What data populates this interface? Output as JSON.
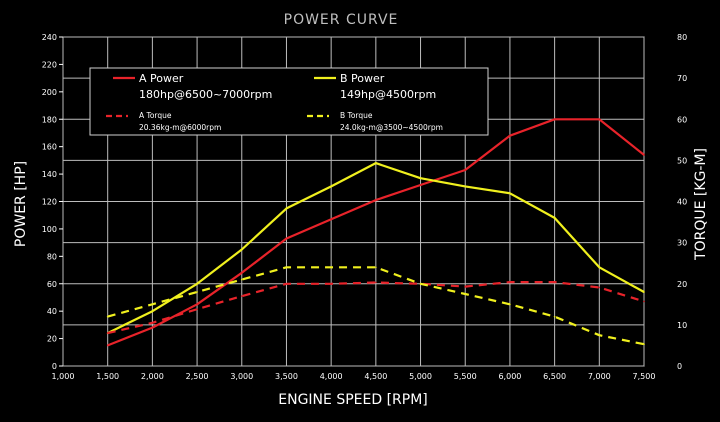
{
  "chart_data": {
    "type": "line",
    "title": "POWER CURVE",
    "xlabel": "ENGINE SPEED [RPM]",
    "ylabel_left": "POWER [HP]",
    "ylabel_right": "TORQUE [KG-M]",
    "x_ticks": [
      "1,000",
      "1,500",
      "2,000",
      "2,500",
      "3,000",
      "3,500",
      "4,000",
      "4,500",
      "5,000",
      "5,500",
      "6,000",
      "6,500",
      "7,000",
      "7,500"
    ],
    "y_left_ticks": [
      "0",
      "20",
      "40",
      "60",
      "80",
      "100",
      "120",
      "140",
      "160",
      "180",
      "200",
      "220",
      "240"
    ],
    "y_right_ticks": [
      "0",
      "10",
      "20",
      "30",
      "40",
      "50",
      "60",
      "70",
      "80"
    ],
    "xlim": [
      1000,
      7500
    ],
    "ylim_left": [
      0,
      240
    ],
    "ylim_right": [
      0,
      80
    ],
    "grid": true,
    "legend_position": "top-left",
    "series": [
      {
        "name": "A Power",
        "legend_detail": "180hp@6500~7000rpm",
        "axis": "left",
        "color": "#e8232a",
        "dashed": false,
        "x": [
          1500,
          2000,
          2500,
          3000,
          3500,
          4000,
          4500,
          5000,
          5500,
          6000,
          6500,
          7000,
          7500
        ],
        "y": [
          15,
          28,
          45,
          68,
          93,
          107,
          121,
          132,
          143,
          168,
          180,
          180,
          154
        ]
      },
      {
        "name": "B Power",
        "legend_detail": "149hp@4500rpm",
        "axis": "left",
        "color": "#f0f01e",
        "dashed": false,
        "x": [
          1500,
          2000,
          2500,
          3000,
          3500,
          4000,
          4500,
          5000,
          5500,
          6000,
          6500,
          7000,
          7500
        ],
        "y": [
          24,
          40,
          60,
          85,
          115,
          131,
          148,
          137,
          131,
          126,
          108,
          72,
          54
        ]
      },
      {
        "name": "A Torque",
        "legend_detail": "20.36kg-m@6000rpm",
        "axis": "right",
        "color": "#e8232a",
        "dashed": true,
        "x": [
          1500,
          2000,
          2500,
          3000,
          3500,
          4000,
          4500,
          5000,
          5500,
          6000,
          6500,
          7000,
          7500
        ],
        "y": [
          8,
          10.5,
          13.8,
          17,
          20,
          20,
          20.3,
          20,
          19.3,
          20.4,
          20.4,
          19.1,
          15.7
        ]
      },
      {
        "name": "B Torque",
        "legend_detail": "24.0kg-m@3500~4500rpm",
        "axis": "right",
        "color": "#f0f01e",
        "dashed": true,
        "x": [
          1500,
          2000,
          2500,
          3000,
          3500,
          4000,
          4500,
          5000,
          5500,
          6000,
          6500,
          7000,
          7500
        ],
        "y": [
          12,
          15,
          18,
          21,
          24,
          24,
          24,
          20,
          17.5,
          15,
          12,
          7.5,
          5.3
        ]
      }
    ]
  }
}
